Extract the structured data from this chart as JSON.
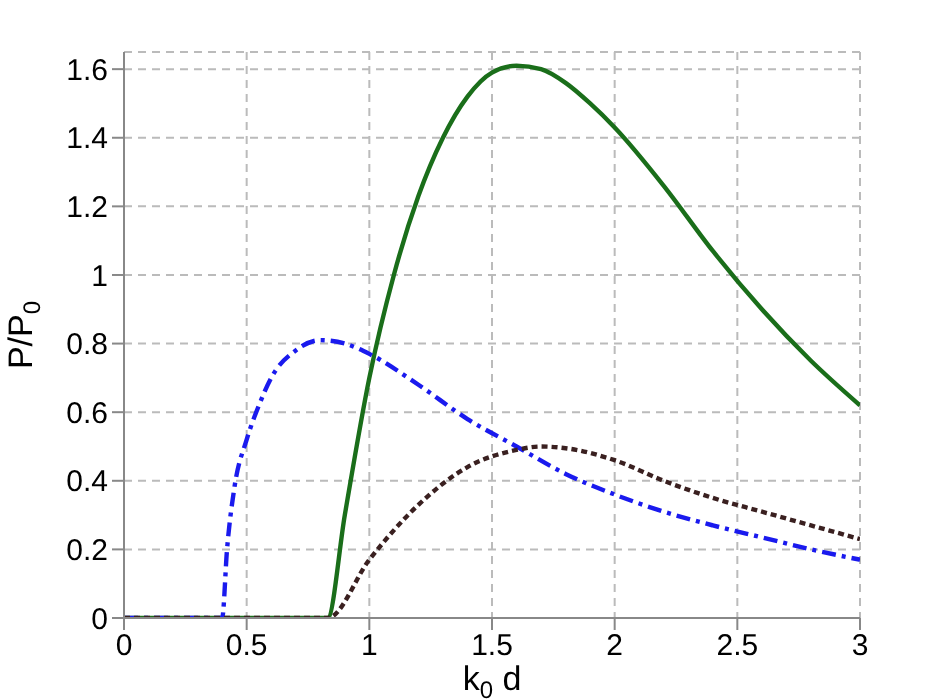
{
  "chart_data": {
    "type": "line",
    "xlabel": "k$_{0}$ d",
    "ylabel": "P/P$_{0}$",
    "xlim": [
      0,
      3
    ],
    "ylim": [
      0,
      1.65
    ],
    "xticks": [
      0,
      0.5,
      1,
      1.5,
      2,
      2.5,
      3
    ],
    "yticks": [
      0,
      0.2,
      0.4,
      0.6,
      0.8,
      1,
      1.2,
      1.4,
      1.6
    ],
    "grid": true,
    "marker": "none",
    "legend": false,
    "series": [
      {
        "color": "#1a6e1a",
        "line_style": "solid",
        "x": [
          0,
          0.83,
          0.9,
          1.0,
          1.1,
          1.2,
          1.3,
          1.4,
          1.5,
          1.6,
          1.7,
          1.8,
          1.9,
          2.0,
          2.2,
          2.4,
          2.6,
          2.8,
          3.0
        ],
        "values": [
          0,
          0,
          0.3,
          0.7,
          1.0,
          1.23,
          1.4,
          1.52,
          1.59,
          1.61,
          1.6,
          1.56,
          1.5,
          1.43,
          1.26,
          1.07,
          0.9,
          0.75,
          0.62
        ]
      },
      {
        "color": "#1a1aee",
        "line_style": "dashed",
        "x": [
          0,
          0.4,
          0.42,
          0.45,
          0.5,
          0.55,
          0.6,
          0.7,
          0.8,
          0.9,
          1.0,
          1.2,
          1.4,
          1.6,
          1.8,
          2.0,
          2.2,
          2.4,
          2.6,
          2.8,
          3.0
        ],
        "values": [
          0,
          0,
          0.2,
          0.38,
          0.52,
          0.62,
          0.7,
          0.78,
          0.81,
          0.8,
          0.77,
          0.68,
          0.58,
          0.5,
          0.42,
          0.36,
          0.31,
          0.27,
          0.235,
          0.2,
          0.17
        ]
      },
      {
        "color": "#3a2020",
        "line_style": "dotted",
        "x": [
          0,
          0.83,
          1.0,
          1.2,
          1.4,
          1.6,
          1.7,
          1.8,
          2.0,
          2.2,
          2.4,
          2.6,
          2.8,
          3.0
        ],
        "values": [
          0,
          0,
          0.17,
          0.33,
          0.44,
          0.49,
          0.5,
          0.495,
          0.46,
          0.4,
          0.35,
          0.31,
          0.27,
          0.23
        ]
      }
    ]
  }
}
